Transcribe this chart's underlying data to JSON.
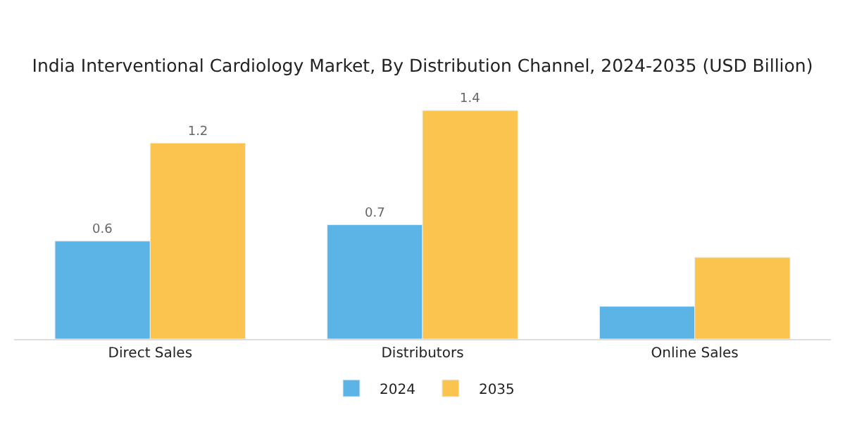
{
  "chart_data": {
    "type": "bar",
    "title": "India Interventional Cardiology Market, By Distribution Channel, 2024-2035 (USD Billion)",
    "categories": [
      "Direct Sales",
      "Distributors",
      "Online Sales"
    ],
    "series": [
      {
        "name": "2024",
        "color": "#5cb3e6",
        "values": [
          0.6,
          0.7,
          0.2
        ],
        "value_labels": [
          "0.6",
          "0.7",
          null
        ]
      },
      {
        "name": "2035",
        "color": "#fac44e",
        "values": [
          1.2,
          1.4,
          0.5
        ],
        "value_labels": [
          "1.2",
          "1.4",
          null
        ]
      }
    ],
    "legend": "bottom"
  }
}
